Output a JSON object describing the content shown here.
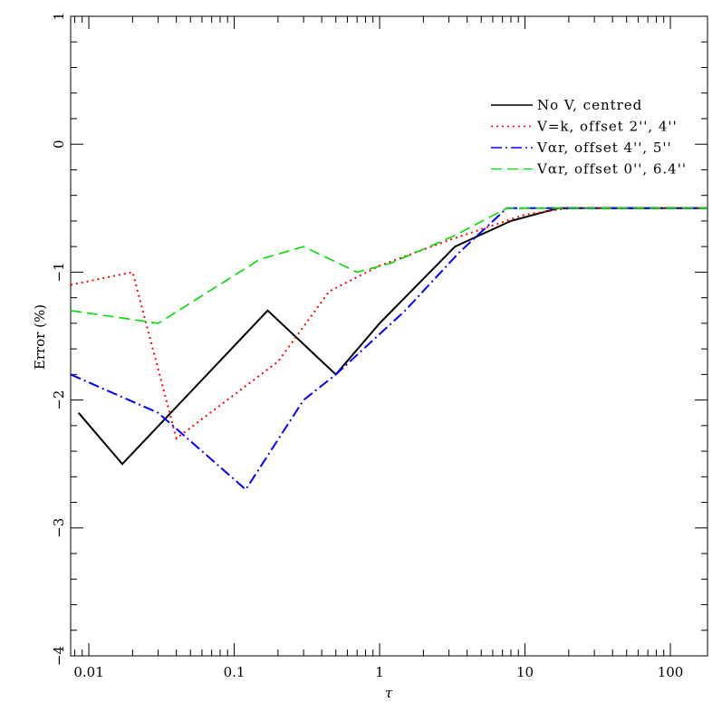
{
  "chart_data": {
    "type": "line",
    "xlabel": "τ",
    "ylabel": "Error (%)",
    "x_scale": "log",
    "xlim": [
      0.0075,
      180
    ],
    "ylim": [
      -4,
      1
    ],
    "x_ticks": [
      {
        "value": 0.01,
        "label": "0.01"
      },
      {
        "value": 0.1,
        "label": "0.1"
      },
      {
        "value": 1,
        "label": "1"
      },
      {
        "value": 10,
        "label": "10"
      },
      {
        "value": 100,
        "label": "100"
      }
    ],
    "y_ticks": [
      {
        "value": 1,
        "label": "1"
      },
      {
        "value": 0,
        "label": "0"
      },
      {
        "value": -1,
        "label": "−1"
      },
      {
        "value": -2,
        "label": "−2"
      },
      {
        "value": -3,
        "label": "−3"
      },
      {
        "value": -4,
        "label": "−4"
      }
    ],
    "grid": false,
    "legend_position": "top-right",
    "series": [
      {
        "name": "No V, centred",
        "color": "#000000",
        "style": "solid",
        "points": [
          [
            0.0085,
            -2.1
          ],
          [
            0.017,
            -2.5
          ],
          [
            0.17,
            -1.3
          ],
          [
            0.5,
            -1.8
          ],
          [
            1.0,
            -1.4
          ],
          [
            3.3,
            -0.8
          ],
          [
            8.0,
            -0.6
          ],
          [
            17,
            -0.5
          ],
          [
            180,
            -0.5
          ]
        ]
      },
      {
        "name": "V=k, offset 2'', 4''",
        "color": "#ff0000",
        "style": "dotted",
        "points": [
          [
            0.0075,
            -1.1
          ],
          [
            0.02,
            -1.0
          ],
          [
            0.04,
            -2.3
          ],
          [
            0.2,
            -1.7
          ],
          [
            0.45,
            -1.15
          ],
          [
            1.0,
            -0.95
          ],
          [
            3.0,
            -0.75
          ],
          [
            10,
            -0.55
          ],
          [
            20,
            -0.5
          ],
          [
            180,
            -0.5
          ]
        ]
      },
      {
        "name": "Vαr, offset 4'', 5''",
        "color": "#0000ff",
        "style": "dashdot",
        "points": [
          [
            0.0075,
            -1.8
          ],
          [
            0.03,
            -2.1
          ],
          [
            0.12,
            -2.7
          ],
          [
            0.3,
            -2.0
          ],
          [
            0.5,
            -1.8
          ],
          [
            1.5,
            -1.3
          ],
          [
            3.5,
            -0.85
          ],
          [
            7.5,
            -0.5
          ],
          [
            180,
            -0.5
          ]
        ]
      },
      {
        "name": "Vαr, offset 0'', 6.4''",
        "color": "#00dd00",
        "style": "dashed",
        "points": [
          [
            0.0075,
            -1.3
          ],
          [
            0.03,
            -1.4
          ],
          [
            0.15,
            -0.9
          ],
          [
            0.3,
            -0.8
          ],
          [
            0.7,
            -1.0
          ],
          [
            1.2,
            -0.93
          ],
          [
            3.2,
            -0.72
          ],
          [
            7.5,
            -0.5
          ],
          [
            180,
            -0.5
          ]
        ]
      }
    ]
  }
}
